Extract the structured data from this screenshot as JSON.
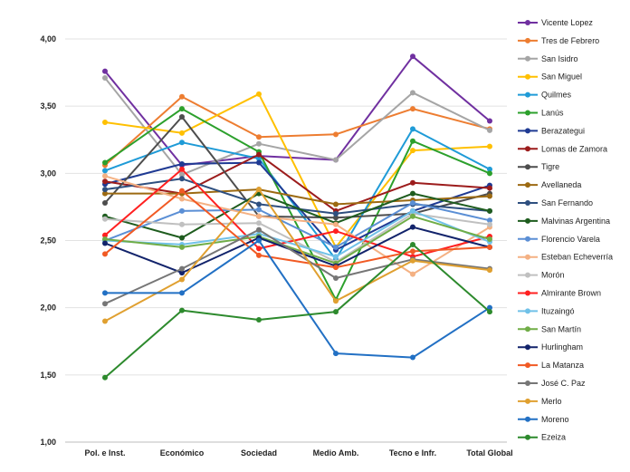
{
  "chart_data": {
    "type": "line",
    "categories": [
      "Pol. e Inst.",
      "Económico",
      "Sociedad",
      "Medio Amb.",
      "Tecno e Infr.",
      "Total Global"
    ],
    "ylim": [
      1.0,
      4.0
    ],
    "yticks": [
      "1,00",
      "1,50",
      "2,00",
      "2,50",
      "3,00",
      "3,50",
      "4,00"
    ],
    "ytick_values": [
      1.0,
      1.5,
      2.0,
      2.5,
      3.0,
      3.5,
      4.0
    ],
    "grid": true,
    "legend": "right",
    "series": [
      {
        "name": "Vicente Lopez",
        "color": "#7030a0",
        "values": [
          3.76,
          3.06,
          3.13,
          3.1,
          3.87,
          3.39
        ]
      },
      {
        "name": "Tres de Febrero",
        "color": "#ed7d31",
        "values": [
          3.06,
          3.57,
          3.27,
          3.29,
          3.48,
          3.33
        ]
      },
      {
        "name": "San Isidro",
        "color": "#a5a5a5",
        "values": [
          3.71,
          2.99,
          3.22,
          3.1,
          3.6,
          3.32
        ]
      },
      {
        "name": "San Miguel",
        "color": "#ffc000",
        "values": [
          3.38,
          3.3,
          3.59,
          2.45,
          3.17,
          3.2
        ]
      },
      {
        "name": "Quilmes",
        "color": "#1f9bd7",
        "values": [
          3.02,
          3.23,
          3.11,
          2.36,
          3.33,
          3.03
        ]
      },
      {
        "name": "Lanús",
        "color": "#2ca02c",
        "values": [
          3.08,
          3.48,
          3.16,
          2.06,
          3.24,
          3.0
        ]
      },
      {
        "name": "Berazategui",
        "color": "#1f3a93",
        "values": [
          2.92,
          3.07,
          3.08,
          2.43,
          2.72,
          2.91
        ]
      },
      {
        "name": "Lomas de Zamora",
        "color": "#9c1c1c",
        "values": [
          2.94,
          2.85,
          3.14,
          2.72,
          2.93,
          2.89
        ]
      },
      {
        "name": "Tigre",
        "color": "#4d4d4d",
        "values": [
          2.78,
          3.42,
          2.68,
          2.67,
          2.7,
          2.85
        ]
      },
      {
        "name": "Avellaneda",
        "color": "#9c6a12",
        "values": [
          2.85,
          2.85,
          2.88,
          2.77,
          2.8,
          2.83
        ]
      },
      {
        "name": "San Fernando",
        "color": "#2e4f7f",
        "values": [
          2.88,
          2.96,
          2.77,
          2.7,
          2.77,
          2.72
        ]
      },
      {
        "name": "Malvinas Argentina",
        "color": "#1e5c1e",
        "values": [
          2.68,
          2.52,
          2.85,
          2.63,
          2.85,
          2.72
        ]
      },
      {
        "name": "Florencio Varela",
        "color": "#5b8fd5",
        "values": [
          2.5,
          2.72,
          2.73,
          2.45,
          2.78,
          2.65
        ]
      },
      {
        "name": "Esteban Echeverría",
        "color": "#f4b183",
        "values": [
          2.98,
          2.81,
          2.68,
          2.62,
          2.25,
          2.6
        ]
      },
      {
        "name": "Morón",
        "color": "#c0c0c0",
        "values": [
          2.66,
          2.62,
          2.63,
          2.34,
          2.7,
          2.62
        ]
      },
      {
        "name": "Almirante Brown",
        "color": "#ff2020",
        "values": [
          2.54,
          3.03,
          2.44,
          2.57,
          2.38,
          2.53
        ]
      },
      {
        "name": "Ituzaingó",
        "color": "#70c1e8",
        "values": [
          2.5,
          2.47,
          2.55,
          2.38,
          2.72,
          2.49
        ]
      },
      {
        "name": "San Martín",
        "color": "#70ad47",
        "values": [
          2.51,
          2.45,
          2.53,
          2.33,
          2.68,
          2.51
        ]
      },
      {
        "name": "Hurlingham",
        "color": "#12236b",
        "values": [
          2.48,
          2.26,
          2.52,
          2.31,
          2.6,
          2.45
        ]
      },
      {
        "name": "La Matanza",
        "color": "#f15a24",
        "values": [
          2.4,
          2.87,
          2.39,
          2.3,
          2.42,
          2.45
        ]
      },
      {
        "name": "José C. Paz",
        "color": "#767676",
        "values": [
          2.03,
          2.29,
          2.58,
          2.22,
          2.36,
          2.29
        ]
      },
      {
        "name": "Merlo",
        "color": "#e0a030",
        "values": [
          1.9,
          2.21,
          2.88,
          2.05,
          2.35,
          2.28
        ]
      },
      {
        "name": "Moreno",
        "color": "#2270c4",
        "values": [
          2.11,
          2.11,
          2.5,
          1.66,
          1.63,
          2.0
        ]
      },
      {
        "name": "Ezeiza",
        "color": "#2d8a2d",
        "values": [
          1.48,
          1.98,
          1.91,
          1.97,
          2.47,
          1.97
        ]
      }
    ]
  }
}
